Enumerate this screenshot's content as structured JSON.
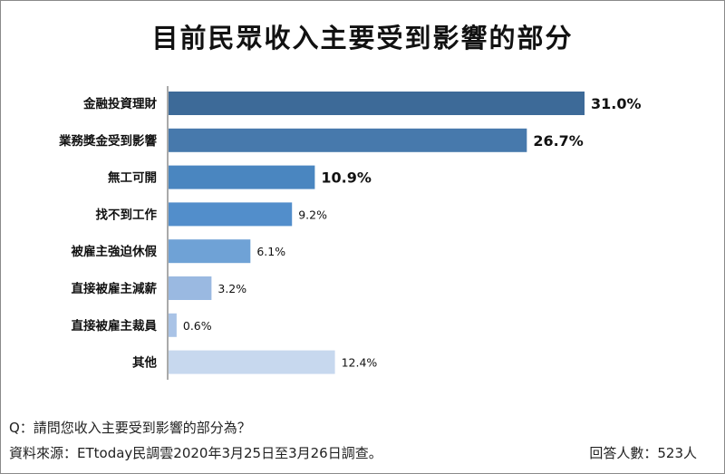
{
  "title": "目前民眾收入主要受到影響的部分",
  "footer": {
    "question": "Q：請問您收入主要受到影響的部分為？",
    "source": "資料來源：ETtoday民調雲2020年3月25日至3月26日調查。",
    "respondents": "回答人數：523人"
  },
  "chart_data": {
    "type": "bar",
    "orientation": "horizontal",
    "title": "目前民眾收入主要受到影響的部分",
    "categories": [
      "金融投資理財",
      "業務獎金受到影響",
      "無工可開",
      "找不到工作",
      "被雇主強迫休假",
      "直接被雇主減薪",
      "直接被雇主裁員",
      "其他"
    ],
    "values": [
      31.0,
      26.7,
      10.9,
      9.2,
      6.1,
      3.2,
      0.6,
      12.4
    ],
    "value_labels": [
      "31.0%",
      "26.7%",
      "10.9%",
      "9.2%",
      "6.1%",
      "3.2%",
      "0.6%",
      "12.4%"
    ],
    "unit": "%",
    "xlim": [
      0,
      31.0
    ],
    "grid": false,
    "legend": "none",
    "colors": [
      "#3d6a98",
      "#4779ac",
      "#4a86c0",
      "#528ecb",
      "#6fa2d6",
      "#9ab9e1",
      "#a9c3e6",
      "#c7d8ee"
    ],
    "emphasized_label_count": 3
  }
}
